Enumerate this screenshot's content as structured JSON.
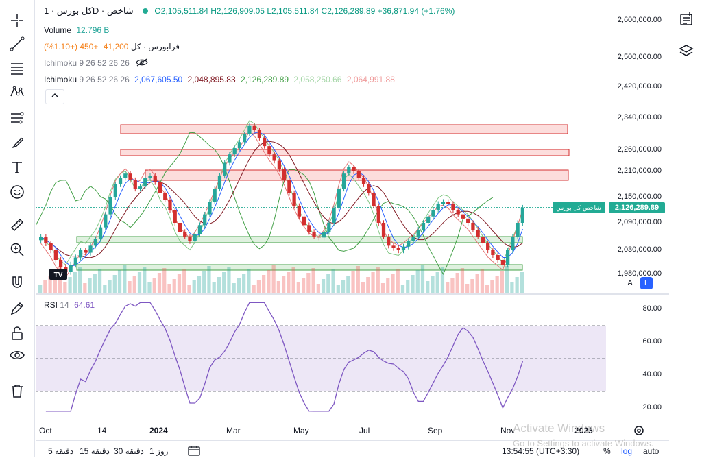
{
  "header": {
    "symbol": "کل بورس · 1D · شاخص",
    "open": "O2,105,511.84",
    "high": "H2,126,909.05",
    "low": "L2,105,511.84",
    "close": "C2,126,289.89",
    "change": "+36,871.94 (+1.76%)"
  },
  "legend": {
    "volume_label": "Volume",
    "volume_value": "12.796 B",
    "fara_label": "فرابورس · کل",
    "fara_value": "41,200",
    "fara_change": "+450 (+1.10%)",
    "ichimoku1_label": "Ichimoku",
    "ichimoku1_params": "9 26 52 26 26",
    "ichimoku2_label": "Ichimoku",
    "ichimoku2_params": "9 26 52 26 26",
    "ichimoku2_values": [
      "2,067,605.50",
      "2,048,895.83",
      "2,126,289.89",
      "2,058,250.66",
      "2,064,991.88"
    ],
    "ichimoku2_colors": [
      "#2962ff",
      "#801922",
      "#43a047",
      "#a5d6a7",
      "#ef9a9a"
    ]
  },
  "price_axis": [
    "2,600,000.00",
    "2,500,000.00",
    "2,420,000.00",
    "2,340,000.00",
    "2,260,000.00",
    "2,210,000.00",
    "2,150,000.00",
    "2,090,000.00",
    "2,030,000.00",
    "1,980,000.00"
  ],
  "last_price": "2,126,289.89",
  "series_tag": "شاخص کل بورس",
  "rsi": {
    "label": "RSI",
    "period": "14",
    "value": "64.61",
    "axis": [
      "80.00",
      "60.00",
      "40.00",
      "20.00"
    ],
    "upper": 70,
    "middle": 50,
    "lower": 30
  },
  "time_axis": [
    "Oct",
    "14",
    "2024",
    "Mar",
    "May",
    "Jul",
    "Sep",
    "Nov",
    "2025"
  ],
  "bottom_bar": {
    "timeframes": [
      "دقیقه 5",
      "دقیقه 15",
      "دقیقه 30",
      "روز 1"
    ],
    "clock": "13:54:55 (UTC+3:30)",
    "percent": "%",
    "log": "log",
    "auto": "auto"
  },
  "scale_buttons": {
    "a": "A",
    "l": "L"
  },
  "watermark": {
    "title": "Activate Windows",
    "subtitle": "Go to Settings to activate Windows."
  },
  "colors": {
    "up": "#26a69a",
    "down": "#d32f2f",
    "rsi_line": "#7e57c2",
    "rsi_band": "#ede7f6",
    "accent": "#2962ff"
  },
  "chart_data": {
    "type": "candlestick",
    "title": "کل بورس · 1D · شاخص",
    "close": [
      2060000,
      2045000,
      2030000,
      2010000,
      1995000,
      1985000,
      2000000,
      2015000,
      2030000,
      2025000,
      2040000,
      2055000,
      2080000,
      2110000,
      2150000,
      2180000,
      2195000,
      2205000,
      2190000,
      2170000,
      2175000,
      2195000,
      2200000,
      2185000,
      2160000,
      2145000,
      2120000,
      2090000,
      2070000,
      2060000,
      2050000,
      2065000,
      2085000,
      2110000,
      2140000,
      2170000,
      2200000,
      2230000,
      2250000,
      2265000,
      2280000,
      2300000,
      2320000,
      2310000,
      2290000,
      2270000,
      2250000,
      2235000,
      2215000,
      2190000,
      2160000,
      2130000,
      2105000,
      2085000,
      2070000,
      2060000,
      2058000,
      2070000,
      2090000,
      2125000,
      2170000,
      2205000,
      2220000,
      2210000,
      2195000,
      2180000,
      2160000,
      2130000,
      2090000,
      2060000,
      2040000,
      2035000,
      2030000,
      2038000,
      2050000,
      2060000,
      2075000,
      2090000,
      2105000,
      2120000,
      2135000,
      2140000,
      2135000,
      2120000,
      2110000,
      2100000,
      2090000,
      2075000,
      2060000,
      2045000,
      2030000,
      2020000,
      2010000,
      2000000,
      2030000,
      2060000,
      2090000,
      2126289.89
    ]
  }
}
